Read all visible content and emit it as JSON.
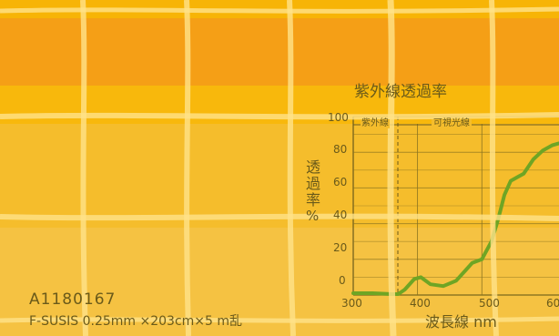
{
  "sheet": {
    "code": "A1180167",
    "spec": "F-SUSIS 0.25mm ×203cm×5 m乱",
    "colors": {
      "base": "#f7b406",
      "top_band": "#f59f16",
      "lower_panel": "#f4c44a",
      "chart_line": "#6fa524",
      "text": "#6a5a1a",
      "grid_thread": "#ffe28a"
    }
  },
  "chart": {
    "title": "紫外線透過率",
    "y_label": [
      "透",
      "過",
      "率",
      "%"
    ],
    "x_label": "波長線 nm",
    "regions": [
      "紫外線",
      "可視光線"
    ],
    "y_ticks": [
      "100",
      "80",
      "60",
      "40",
      "20",
      "0"
    ],
    "x_ticks": [
      "300",
      "400",
      "500",
      "60"
    ]
  },
  "chart_data": {
    "type": "line",
    "xlabel": "波長線 nm",
    "ylabel": "透過率 %",
    "xlim": [
      300,
      620
    ],
    "ylim": [
      0,
      100
    ],
    "x": [
      300,
      330,
      360,
      370,
      380,
      395,
      405,
      420,
      440,
      460,
      475,
      485,
      500,
      515,
      525,
      535,
      545,
      555,
      565,
      580,
      595,
      610,
      620
    ],
    "values": [
      1,
      1,
      0.5,
      0.5,
      3,
      9,
      10,
      6,
      5,
      8,
      14,
      18,
      20,
      30,
      42,
      56,
      64,
      66,
      68,
      76,
      81,
      84,
      85
    ]
  }
}
